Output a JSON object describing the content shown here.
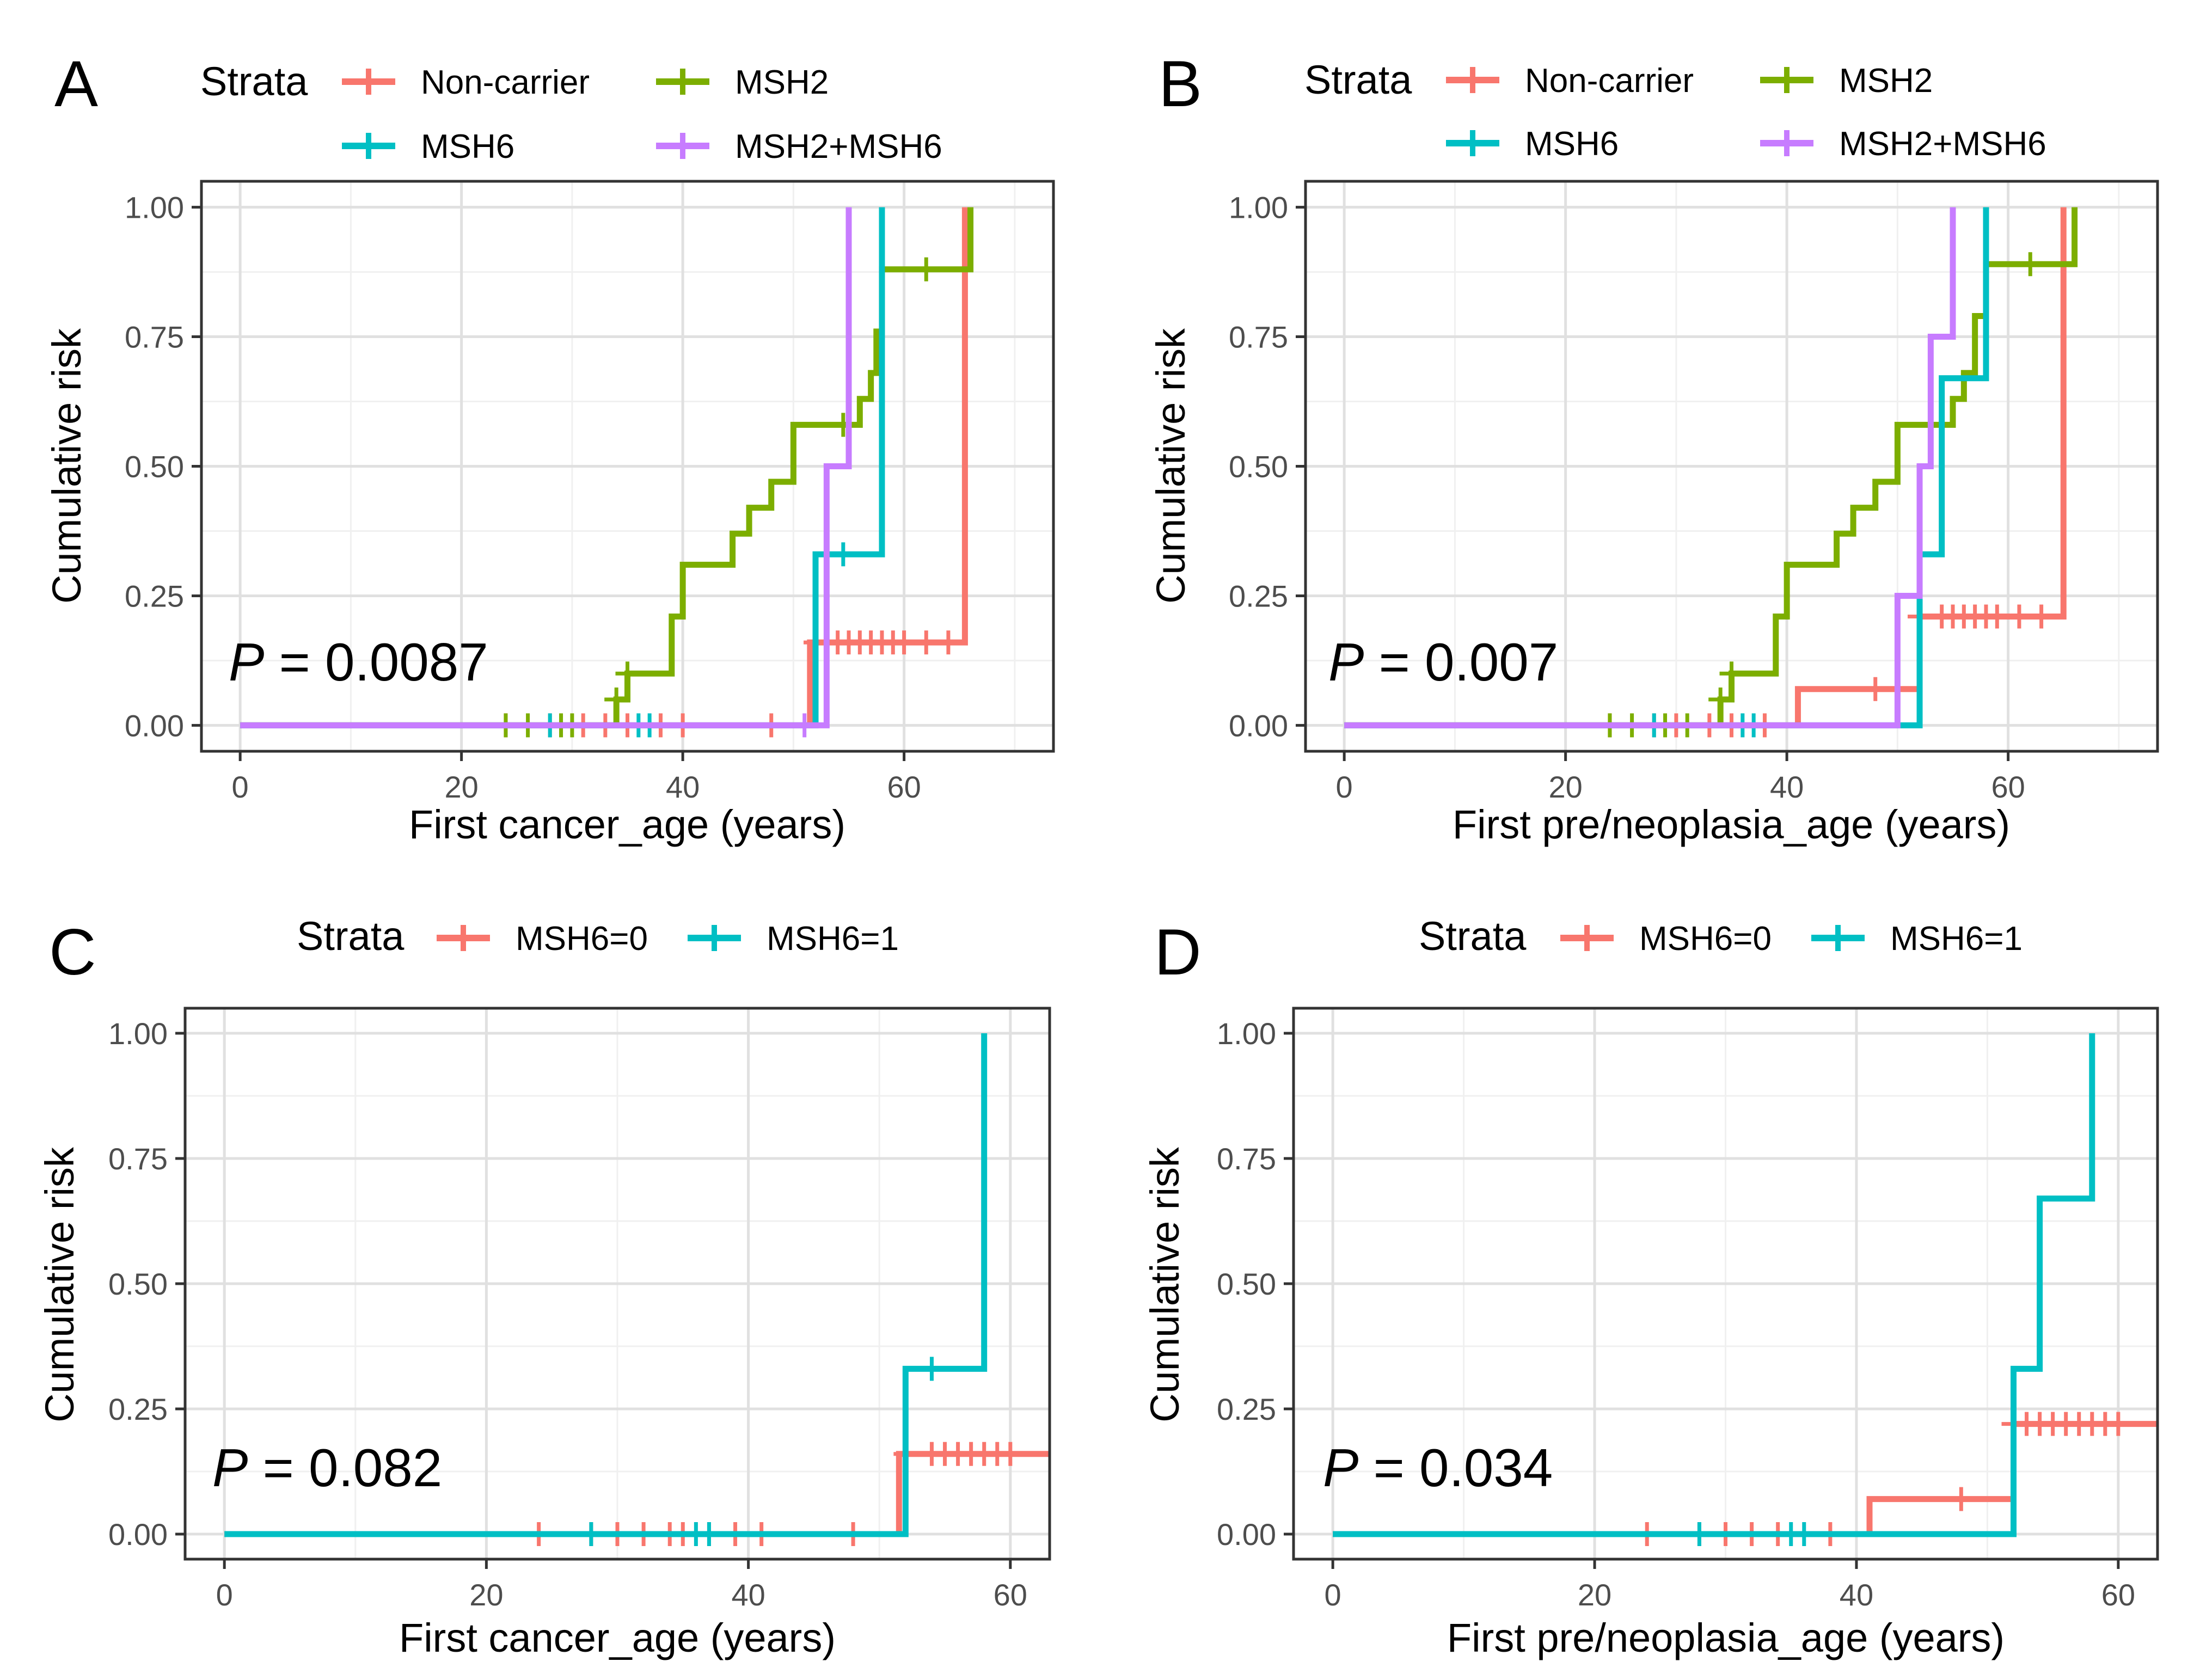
{
  "colors": {
    "Non-carrier": "#F8766D",
    "MSH2": "#7CAE00",
    "MSH6": "#00BFC4",
    "MSH2+MSH6": "#C77CFF",
    "MSH6=0": "#F8766D",
    "MSH6=1": "#00BFC4"
  },
  "chart_data": [
    {
      "panel": "A",
      "type": "line",
      "step": true,
      "legend_title": "Strata",
      "legend": [
        "Non-carrier",
        "MSH2",
        "MSH6",
        "MSH2+MSH6"
      ],
      "xlabel": "First cancer_age (years)",
      "ylabel": "Cumulative risk",
      "xlim": [
        -3.5,
        73.5
      ],
      "ylim": [
        -0.05,
        1.05
      ],
      "xticks": [
        0,
        20,
        40,
        60
      ],
      "xtick_labels": [
        "0",
        "20",
        "40",
        "60"
      ],
      "yticks": [
        0,
        0.25,
        0.5,
        0.75,
        1
      ],
      "ytick_labels": [
        "0.00",
        "0.25",
        "0.50",
        "0.75",
        "1.00"
      ],
      "pvalue_label": "P",
      "pvalue_text": " = 0.0087",
      "series": [
        {
          "name": "Non-carrier",
          "steps": [
            [
              0,
              0
            ],
            [
              51.5,
              0.16
            ],
            [
              65.5,
              1.0
            ]
          ],
          "end": 65.5,
          "censor": [
            [
              24,
              0
            ],
            [
              28,
              0
            ],
            [
              31,
              0
            ],
            [
              33,
              0
            ],
            [
              35,
              0
            ],
            [
              38,
              0
            ],
            [
              40,
              0
            ],
            [
              48,
              0
            ],
            [
              52,
              0.16
            ],
            [
              54,
              0.16
            ],
            [
              55,
              0.16
            ],
            [
              56,
              0.16
            ],
            [
              57,
              0.16
            ],
            [
              58,
              0.16
            ],
            [
              59,
              0.16
            ],
            [
              60,
              0.16
            ],
            [
              62,
              0.16
            ],
            [
              64,
              0.16
            ]
          ]
        },
        {
          "name": "MSH2",
          "steps": [
            [
              0,
              0
            ],
            [
              34,
              0.05
            ],
            [
              35,
              0.1
            ],
            [
              39,
              0.21
            ],
            [
              40,
              0.31
            ],
            [
              44.5,
              0.37
            ],
            [
              46,
              0.42
            ],
            [
              48,
              0.47
            ],
            [
              50,
              0.58
            ],
            [
              54,
              0.58
            ],
            [
              56,
              0.63
            ],
            [
              57,
              0.68
            ],
            [
              57.5,
              0.76
            ],
            [
              58,
              0.88
            ],
            [
              66,
              1.0
            ]
          ],
          "end": 66,
          "censor": [
            [
              24,
              0
            ],
            [
              26,
              0
            ],
            [
              29,
              0
            ],
            [
              30,
              0
            ],
            [
              34,
              0.05
            ],
            [
              35,
              0.1
            ],
            [
              54.5,
              0.58
            ],
            [
              62,
              0.88
            ]
          ]
        },
        {
          "name": "MSH6",
          "steps": [
            [
              0,
              0
            ],
            [
              52,
              0.33
            ],
            [
              58,
              1.0
            ]
          ],
          "end": 58,
          "censor": [
            [
              28,
              0
            ],
            [
              36,
              0
            ],
            [
              37,
              0
            ],
            [
              54.5,
              0.33
            ]
          ]
        },
        {
          "name": "MSH2+MSH6",
          "steps": [
            [
              0,
              0
            ],
            [
              53,
              0.5
            ],
            [
              55,
              1.0
            ]
          ],
          "end": 55,
          "censor": [
            [
              51,
              0
            ]
          ]
        }
      ]
    },
    {
      "panel": "B",
      "type": "line",
      "step": true,
      "legend_title": "Strata",
      "legend": [
        "Non-carrier",
        "MSH2",
        "MSH6",
        "MSH2+MSH6"
      ],
      "xlabel": "First pre/neoplasia_age (years)",
      "ylabel": "Cumulative risk",
      "xlim": [
        -3.5,
        73.5
      ],
      "ylim": [
        -0.05,
        1.05
      ],
      "xticks": [
        0,
        20,
        40,
        60
      ],
      "xtick_labels": [
        "0",
        "20",
        "40",
        "60"
      ],
      "yticks": [
        0,
        0.25,
        0.5,
        0.75,
        1
      ],
      "ytick_labels": [
        "0.00",
        "0.25",
        "0.50",
        "0.75",
        "1.00"
      ],
      "pvalue_label": "P",
      "pvalue_text": " = 0.007",
      "series": [
        {
          "name": "Non-carrier",
          "steps": [
            [
              0,
              0
            ],
            [
              41,
              0.07
            ],
            [
              52,
              0.21
            ],
            [
              65,
              1.0
            ]
          ],
          "end": 65,
          "censor": [
            [
              24,
              0
            ],
            [
              28,
              0
            ],
            [
              30,
              0
            ],
            [
              33,
              0
            ],
            [
              35,
              0
            ],
            [
              38,
              0
            ],
            [
              48,
              0.07
            ],
            [
              52,
              0.21
            ],
            [
              54,
              0.21
            ],
            [
              55,
              0.21
            ],
            [
              56,
              0.21
            ],
            [
              57,
              0.21
            ],
            [
              58,
              0.21
            ],
            [
              59,
              0.21
            ],
            [
              61,
              0.21
            ],
            [
              63,
              0.21
            ]
          ]
        },
        {
          "name": "MSH2",
          "steps": [
            [
              0,
              0
            ],
            [
              34,
              0.05
            ],
            [
              35,
              0.1
            ],
            [
              39,
              0.21
            ],
            [
              40,
              0.31
            ],
            [
              44.5,
              0.37
            ],
            [
              46,
              0.42
            ],
            [
              48,
              0.47
            ],
            [
              50,
              0.58
            ],
            [
              54,
              0.58
            ],
            [
              55,
              0.63
            ],
            [
              56,
              0.68
            ],
            [
              57,
              0.79
            ],
            [
              58,
              0.89
            ],
            [
              66,
              1.0
            ]
          ],
          "end": 66,
          "censor": [
            [
              24,
              0
            ],
            [
              26,
              0
            ],
            [
              29,
              0
            ],
            [
              31,
              0
            ],
            [
              34,
              0.05
            ],
            [
              35,
              0.1
            ],
            [
              62,
              0.89
            ]
          ]
        },
        {
          "name": "MSH6",
          "steps": [
            [
              0,
              0
            ],
            [
              52,
              0.33
            ],
            [
              54,
              0.67
            ],
            [
              58,
              1.0
            ]
          ],
          "end": 58,
          "censor": [
            [
              28,
              0
            ],
            [
              36,
              0
            ],
            [
              37,
              0
            ]
          ]
        },
        {
          "name": "MSH2+MSH6",
          "steps": [
            [
              0,
              0
            ],
            [
              50,
              0.25
            ],
            [
              52,
              0.5
            ],
            [
              53,
              0.75
            ],
            [
              55,
              1.0
            ]
          ],
          "end": 55,
          "censor": []
        }
      ]
    },
    {
      "panel": "C",
      "type": "line",
      "step": true,
      "legend_title": "Strata",
      "legend": [
        "MSH6=0",
        "MSH6=1"
      ],
      "xlabel": "First cancer_age (years)",
      "ylabel": "Cumulative risk",
      "xlim": [
        -3,
        63
      ],
      "ylim": [
        -0.05,
        1.05
      ],
      "xticks": [
        0,
        20,
        40,
        60
      ],
      "xtick_labels": [
        "0",
        "20",
        "40",
        "60"
      ],
      "yticks": [
        0,
        0.25,
        0.5,
        0.75,
        1
      ],
      "ytick_labels": [
        "0.00",
        "0.25",
        "0.50",
        "0.75",
        "1.00"
      ],
      "pvalue_label": "P",
      "pvalue_text": " = 0.082",
      "series": [
        {
          "name": "MSH6=0",
          "steps": [
            [
              0,
              0
            ],
            [
              51.5,
              0.16
            ]
          ],
          "end": 63,
          "censor": [
            [
              24,
              0
            ],
            [
              28,
              0
            ],
            [
              30,
              0
            ],
            [
              32,
              0
            ],
            [
              34,
              0
            ],
            [
              35,
              0
            ],
            [
              37,
              0
            ],
            [
              39,
              0
            ],
            [
              41,
              0
            ],
            [
              48,
              0
            ],
            [
              52,
              0.16
            ],
            [
              54,
              0.16
            ],
            [
              55,
              0.16
            ],
            [
              56,
              0.16
            ],
            [
              57,
              0.16
            ],
            [
              58,
              0.16
            ],
            [
              59,
              0.16
            ],
            [
              60,
              0.16
            ]
          ]
        },
        {
          "name": "MSH6=1",
          "steps": [
            [
              0,
              0
            ],
            [
              52,
              0.33
            ],
            [
              58,
              1.0
            ]
          ],
          "end": 58,
          "censor": [
            [
              28,
              0
            ],
            [
              36,
              0
            ],
            [
              37,
              0
            ],
            [
              54,
              0.33
            ]
          ]
        }
      ]
    },
    {
      "panel": "D",
      "type": "line",
      "step": true,
      "legend_title": "Strata",
      "legend": [
        "MSH6=0",
        "MSH6=1"
      ],
      "xlabel": "First pre/neoplasia_age (years)",
      "ylabel": "Cumulative risk",
      "xlim": [
        -3,
        63
      ],
      "ylim": [
        -0.05,
        1.05
      ],
      "xticks": [
        0,
        20,
        40,
        60
      ],
      "xtick_labels": [
        "0",
        "20",
        "40",
        "60"
      ],
      "yticks": [
        0,
        0.25,
        0.5,
        0.75,
        1
      ],
      "ytick_labels": [
        "0.00",
        "0.25",
        "0.50",
        "0.75",
        "1.00"
      ],
      "pvalue_label": "P",
      "pvalue_text": " = 0.034",
      "series": [
        {
          "name": "MSH6=0",
          "steps": [
            [
              0,
              0
            ],
            [
              41,
              0.07
            ],
            [
              52,
              0.22
            ]
          ],
          "end": 63,
          "censor": [
            [
              24,
              0
            ],
            [
              28,
              0
            ],
            [
              30,
              0
            ],
            [
              32,
              0
            ],
            [
              34,
              0
            ],
            [
              38,
              0
            ],
            [
              48,
              0.07
            ],
            [
              52,
              0.22
            ],
            [
              53,
              0.22
            ],
            [
              54,
              0.22
            ],
            [
              55,
              0.22
            ],
            [
              56,
              0.22
            ],
            [
              57,
              0.22
            ],
            [
              58,
              0.22
            ],
            [
              59,
              0.22
            ],
            [
              60,
              0.22
            ]
          ]
        },
        {
          "name": "MSH6=1",
          "steps": [
            [
              0,
              0
            ],
            [
              52,
              0.33
            ],
            [
              54,
              0.67
            ],
            [
              58,
              1.0
            ]
          ],
          "end": 58,
          "censor": [
            [
              28,
              0
            ],
            [
              35,
              0
            ],
            [
              36,
              0
            ]
          ]
        }
      ]
    }
  ]
}
